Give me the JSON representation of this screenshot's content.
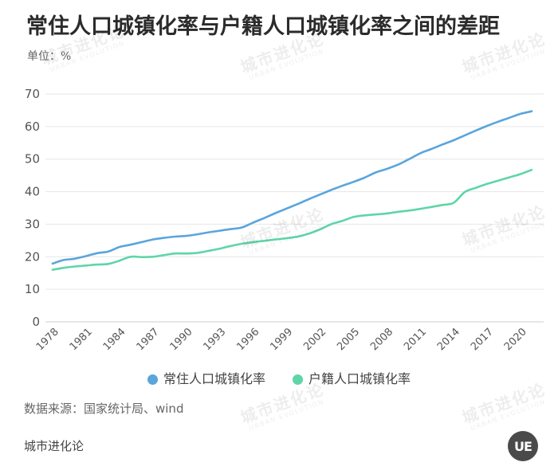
{
  "chart_data": {
    "type": "line",
    "title": "常住人口城镇化率与户籍人口城镇化率之间的差距",
    "ylabel": "单位：%",
    "x": [
      1978,
      1979,
      1980,
      1981,
      1982,
      1983,
      1984,
      1985,
      1986,
      1987,
      1988,
      1989,
      1990,
      1991,
      1992,
      1993,
      1994,
      1995,
      1996,
      1997,
      1998,
      1999,
      2000,
      2001,
      2002,
      2003,
      2004,
      2005,
      2006,
      2007,
      2008,
      2009,
      2010,
      2011,
      2012,
      2013,
      2014,
      2015,
      2016,
      2017,
      2018,
      2019,
      2020,
      2021
    ],
    "xticks": [
      1978,
      1981,
      1984,
      1987,
      1990,
      1993,
      1996,
      1999,
      2002,
      2005,
      2008,
      2011,
      2014,
      2017,
      2020
    ],
    "yticks": [
      0,
      10,
      20,
      30,
      40,
      50,
      60,
      70
    ],
    "xlim": [
      1978,
      2021
    ],
    "ylim": [
      0,
      70
    ],
    "grid": true,
    "legend_position": "bottom",
    "series": [
      {
        "name": "常住人口城镇化率",
        "color": "#5aa5dc",
        "values": [
          17.9,
          19.0,
          19.4,
          20.2,
          21.1,
          21.6,
          23.0,
          23.7,
          24.5,
          25.3,
          25.8,
          26.2,
          26.4,
          26.9,
          27.5,
          28.0,
          28.5,
          29.0,
          30.5,
          31.9,
          33.4,
          34.8,
          36.2,
          37.7,
          39.1,
          40.5,
          41.8,
          43.0,
          44.3,
          45.9,
          47.0,
          48.3,
          50.0,
          51.8,
          53.1,
          54.5,
          55.8,
          57.3,
          58.8,
          60.2,
          61.5,
          62.7,
          63.9,
          64.7
        ]
      },
      {
        "name": "户籍人口城镇化率",
        "color": "#5fd5a8",
        "values": [
          16.0,
          16.6,
          17.0,
          17.3,
          17.6,
          17.8,
          18.8,
          20.0,
          19.9,
          20.0,
          20.5,
          21.0,
          21.0,
          21.2,
          21.8,
          22.5,
          23.3,
          24.0,
          24.5,
          24.9,
          25.3,
          25.7,
          26.2,
          27.1,
          28.4,
          30.0,
          31.0,
          32.2,
          32.7,
          33.0,
          33.3,
          33.8,
          34.2,
          34.7,
          35.3,
          35.9,
          36.6,
          39.9,
          41.2,
          42.4,
          43.4,
          44.4,
          45.4,
          46.7
        ]
      }
    ]
  },
  "source": "数据来源：国家统计局、wind",
  "brand": "城市进化论",
  "logo_text": "UE",
  "watermark": {
    "cn": "城市进化论",
    "en": "URBAN EVOLUTION"
  },
  "colors": {
    "title": "#2b2b2b",
    "grid": "#e6e6e6",
    "axis": "#cfcfcf",
    "logo_bg": "#4a4a4a"
  }
}
